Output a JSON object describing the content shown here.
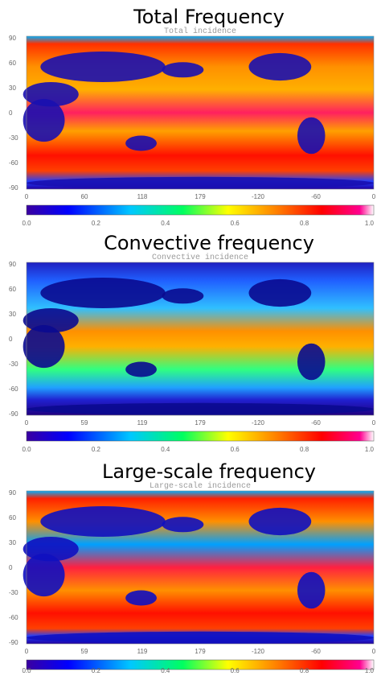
{
  "panels": [
    {
      "title": "Total Frequency",
      "inner_title": "Total incidence",
      "yticks": [
        "90",
        "60",
        "30",
        "0",
        "-30",
        "-60",
        "-90"
      ],
      "xticks": [
        "0",
        "60",
        "118",
        "179",
        "-120",
        "-60",
        "0"
      ],
      "colorbar_ticks": [
        "0.0",
        "0.2",
        "0.4",
        "0.6",
        "0.8",
        "1.0"
      ]
    },
    {
      "title": "Convective frequency",
      "inner_title": "Convective incidence",
      "yticks": [
        "90",
        "60",
        "30",
        "0",
        "-30",
        "-60",
        "-90"
      ],
      "xticks": [
        "0",
        "59",
        "119",
        "179",
        "-120",
        "-60",
        "0"
      ],
      "colorbar_ticks": [
        "0.0",
        "0.2",
        "0.4",
        "0.6",
        "0.8",
        "1.0"
      ]
    },
    {
      "title": "Large-scale frequency",
      "inner_title": "Large-scale incidence",
      "yticks": [
        "90",
        "60",
        "30",
        "0",
        "-30",
        "-60",
        "-90"
      ],
      "xticks": [
        "0",
        "59",
        "119",
        "179",
        "-120",
        "-60",
        "0"
      ],
      "colorbar_ticks": [
        "0.0",
        "0.2",
        "0.4",
        "0.6",
        "0.8",
        "1.0"
      ]
    }
  ]
}
